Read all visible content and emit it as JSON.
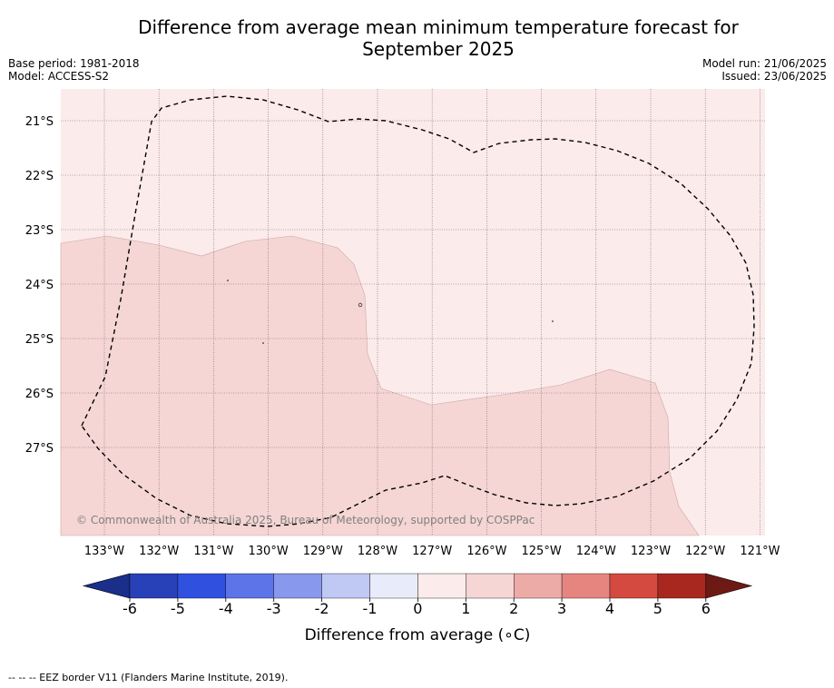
{
  "title_line1": "Difference from average mean minimum temperature forecast for",
  "title_line2": "September 2025",
  "base_period": "Base period: 1981-2018",
  "model": "Model: ACCESS-S2",
  "model_run": "Model run: 21/06/2025",
  "issued": "Issued: 23/06/2025",
  "lat_labels": [
    "21°S",
    "22°S",
    "23°S",
    "24°S",
    "25°S",
    "26°S",
    "27°S"
  ],
  "lon_labels": [
    "133°W",
    "132°W",
    "131°W",
    "130°W",
    "129°W",
    "128°W",
    "127°W",
    "126°W",
    "125°W",
    "124°W",
    "123°W",
    "122°W",
    "121°W"
  ],
  "copyright": "© Commonwealth of Australia 2025, Bureau of Meteorology, supported by COSPPac",
  "colorbar": {
    "ticks": [
      "-6",
      "-5",
      "-4",
      "-3",
      "-2",
      "-1",
      "0",
      "1",
      "2",
      "3",
      "4",
      "5",
      "6"
    ],
    "colors": [
      "#1a2e8a",
      "#2840b8",
      "#3050e0",
      "#5c74e8",
      "#8898ec",
      "#c0c8f4",
      "#e8ecfa",
      "#fbebea",
      "#f5d6d4",
      "#edaba8",
      "#e6857f",
      "#d44a40",
      "#a82820",
      "#6e1a14"
    ],
    "label": "Difference from average (∘C)"
  },
  "map_colors": {
    "band_0_1": "#fbebea",
    "band_1_2": "#f5d6d4"
  },
  "legend_footer": "--  --  -- EEZ border V11 (Flanders Marine Institute, 2019)."
}
